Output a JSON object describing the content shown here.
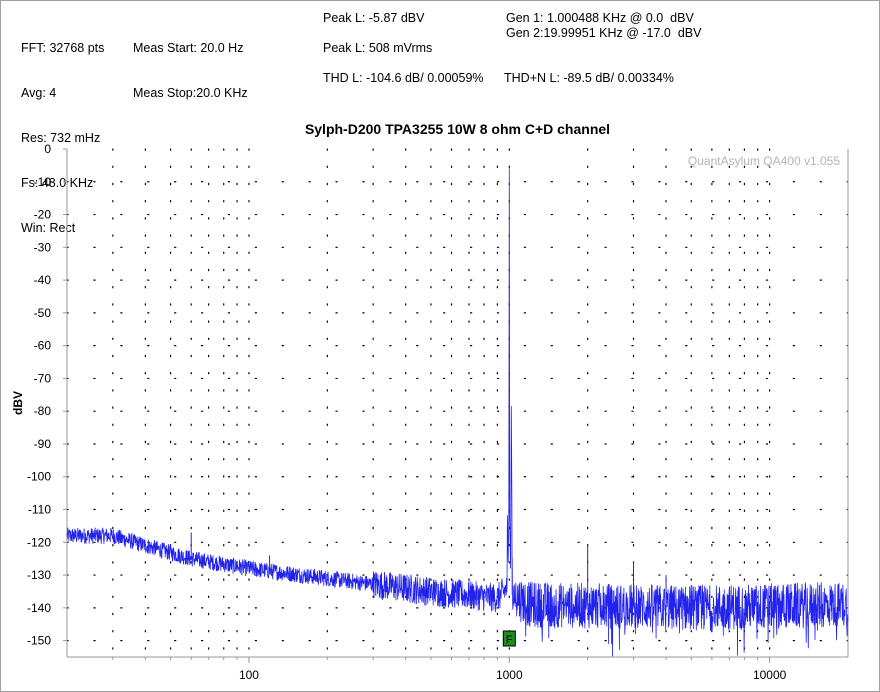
{
  "readouts": {
    "col1": [
      "FFT: 32768 pts",
      "Avg: 4",
      "Res: 732 mHz",
      "Fs: 48.0 KHz",
      "Win: Rect"
    ],
    "col2": [
      "Meas Start: 20.0 Hz",
      "Meas Stop:20.0 KHz"
    ],
    "peak_l_dbv": "Peak L: -5.87 dBV",
    "peak_l_vrms": "Peak L: 508 mVrms",
    "gen1": "Gen 1: 1.000488 KHz @ 0.0  dBV",
    "gen2": "Gen 2:19.99951 KHz @ -17.0  dBV",
    "thd": "THD L: -104.6 dB/ 0.00059%",
    "thdn": "THD+N L: -89.5 dB/ 0.00334%"
  },
  "chart_data": {
    "type": "line",
    "title": "Sylph-D200 TPA3255 10W 8 ohm C+D channel",
    "ylabel": "dBV",
    "xlabel": "",
    "x_scale": "log",
    "xlim": [
      20,
      20000
    ],
    "ylim": [
      -155,
      0
    ],
    "y_ticks": [
      0,
      -10,
      -20,
      -30,
      -40,
      -50,
      -60,
      -70,
      -80,
      -90,
      -100,
      -110,
      -120,
      -130,
      -140,
      -150
    ],
    "x_tick_labels": [
      "100",
      "1000",
      "10000"
    ],
    "watermark": "QuantAsylum QA400 v1.055",
    "marker_label": "F",
    "marker_color": "#1e8c1e",
    "grid": "dotted",
    "series": [
      {
        "color": "#2222ee",
        "noise_floor": [
          [
            20,
            -118
          ],
          [
            30,
            -118
          ],
          [
            40,
            -121
          ],
          [
            60,
            -125
          ],
          [
            100,
            -128
          ],
          [
            200,
            -131
          ],
          [
            500,
            -135
          ],
          [
            900,
            -137
          ],
          [
            980,
            -134
          ],
          [
            1000,
            -5.87
          ],
          [
            1030,
            -136
          ],
          [
            1200,
            -139
          ],
          [
            5000,
            -140
          ],
          [
            20000,
            -139
          ]
        ],
        "spurs": [
          [
            60,
            -117
          ],
          [
            120,
            -124
          ],
          [
            2000,
            -121
          ],
          [
            3000,
            -126
          ],
          [
            4000,
            -130
          ],
          [
            5000,
            -133
          ]
        ]
      }
    ]
  }
}
